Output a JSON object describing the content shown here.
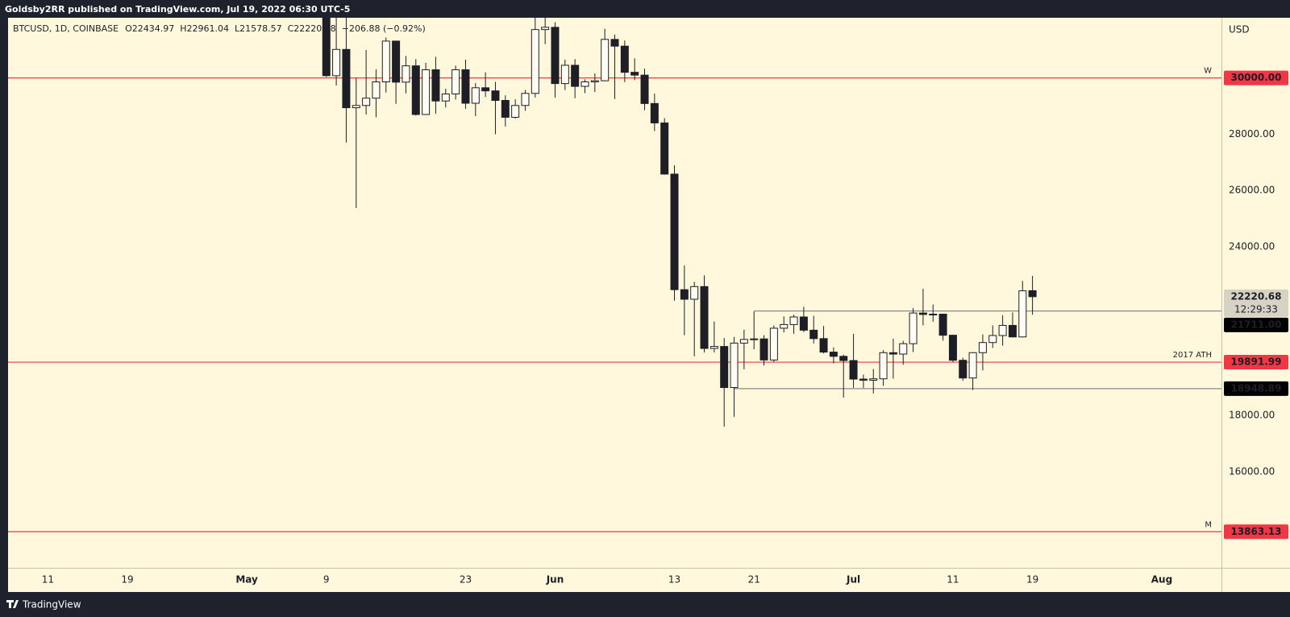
{
  "header": "Goldsby2RR published on TradingView.com, Jul 19, 2022 06:30 UTC-5",
  "footer": "TradingView",
  "chart_data": {
    "type": "candlestick",
    "symbol": "BTCUSD, 1D, COINBASE",
    "ohlc_legend": [
      "O22434.97",
      "H22961.04",
      "L21578.57",
      "C22220.68",
      "−206.88 (−0.92%)"
    ],
    "y_axis_unit": "USD",
    "up_color": "#fffdf3",
    "down_color": "#1e1f26",
    "outline_color": "#1e1f26",
    "x": [
      "05-09",
      "05-10",
      "05-11",
      "05-12",
      "05-13",
      "05-14",
      "05-15",
      "05-16",
      "05-17",
      "05-18",
      "05-19",
      "05-20",
      "05-21",
      "05-22",
      "05-23",
      "05-24",
      "05-25",
      "05-26",
      "05-27",
      "05-28",
      "05-29",
      "05-30",
      "05-31",
      "06-01",
      "06-02",
      "06-03",
      "06-04",
      "06-05",
      "06-06",
      "06-07",
      "06-08",
      "06-09",
      "06-10",
      "06-11",
      "06-12",
      "06-13",
      "06-14",
      "06-15",
      "06-16",
      "06-17",
      "06-18",
      "06-19",
      "06-20",
      "06-21",
      "06-22",
      "06-23",
      "06-24",
      "06-25",
      "06-26",
      "06-27",
      "06-28",
      "06-29",
      "06-30",
      "07-01",
      "07-02",
      "07-03",
      "07-04",
      "07-05",
      "07-06",
      "07-07",
      "07-08",
      "07-09",
      "07-10",
      "07-11",
      "07-12",
      "07-13",
      "07-14",
      "07-15",
      "07-16",
      "07-17",
      "07-18",
      "07-19"
    ],
    "open": [
      34060,
      30080,
      31013,
      28940,
      29020,
      29280,
      29860,
      31310,
      29850,
      30430,
      28700,
      30290,
      29180,
      29430,
      30290,
      29100,
      29650,
      29540,
      29200,
      28600,
      29020,
      29450,
      31720,
      31800,
      29800,
      30450,
      29700,
      29860,
      29900,
      31370,
      31130,
      30200,
      30100,
      29090,
      28400,
      26580,
      22470,
      22130,
      22580,
      20380,
      20450,
      18990,
      20570,
      20700,
      20720,
      19970,
      21100,
      21230,
      21500,
      21030,
      20730,
      20250,
      20100,
      19950,
      19290,
      19250,
      19300,
      20230,
      20180,
      20550,
      21640,
      21590,
      21600,
      20850,
      19960,
      19330,
      20230,
      20590,
      20840,
      21200,
      20790,
      22434.97
    ],
    "high": [
      34244,
      32658,
      32190,
      30000,
      30990,
      30300,
      31440,
      31320,
      30780,
      30670,
      30540,
      30750,
      29620,
      30440,
      30650,
      29820,
      30200,
      29860,
      29380,
      29240,
      29570,
      32200,
      32400,
      31980,
      30650,
      30670,
      29950,
      30160,
      31750,
      31540,
      31330,
      30700,
      30330,
      29440,
      28570,
      26890,
      23330,
      22750,
      22980,
      21340,
      20750,
      20790,
      21050,
      21700,
      20850,
      21200,
      21520,
      21580,
      21860,
      21540,
      21180,
      20420,
      20160,
      20900,
      19450,
      19650,
      20320,
      20730,
      20650,
      21820,
      22500,
      21940,
      21600,
      20860,
      20050,
      20250,
      20880,
      21200,
      21560,
      21660,
      22780,
      22961.04
    ],
    "low": [
      30033,
      29730,
      27700,
      25370,
      28700,
      28600,
      29480,
      29080,
      29450,
      28660,
      28680,
      28730,
      28950,
      29230,
      28900,
      28640,
      29320,
      28000,
      28270,
      28550,
      28830,
      29300,
      31200,
      29300,
      29570,
      29280,
      29460,
      29500,
      29880,
      29250,
      29850,
      29920,
      28850,
      28110,
      26560,
      22080,
      20850,
      20100,
      20240,
      20240,
      17600,
      17950,
      19640,
      20350,
      19770,
      19900,
      20950,
      20900,
      20960,
      20560,
      20200,
      19850,
      18630,
      18980,
      18980,
      18780,
      19050,
      19310,
      19800,
      20250,
      21200,
      21330,
      20660,
      19900,
      19230,
      18900,
      19600,
      20400,
      20480,
      20770,
      20770,
      21578.57
    ],
    "close": [
      30080,
      31013,
      28940,
      29020,
      29280,
      29860,
      31310,
      29850,
      30430,
      28700,
      30290,
      29180,
      29430,
      30290,
      29100,
      29650,
      29540,
      29200,
      28600,
      29020,
      29450,
      31720,
      31800,
      29800,
      30450,
      29700,
      29860,
      29900,
      31370,
      31130,
      30200,
      30100,
      29090,
      28400,
      26580,
      22470,
      22130,
      22580,
      20380,
      20450,
      18990,
      20570,
      20700,
      20720,
      19970,
      21100,
      21230,
      21500,
      21030,
      20730,
      20250,
      20100,
      19950,
      19290,
      19250,
      19300,
      20230,
      20180,
      20550,
      21640,
      21590,
      21600,
      20850,
      19960,
      19330,
      20230,
      20590,
      20840,
      21200,
      20790,
      22430,
      22220.68
    ],
    "xlim": [
      "04-07",
      "08-07"
    ],
    "xticks": [
      {
        "value": "04-11",
        "label": "11"
      },
      {
        "value": "04-19",
        "label": "19"
      },
      {
        "value": "05-01",
        "label": "May"
      },
      {
        "value": "05-09",
        "label": "9"
      },
      {
        "value": "05-23",
        "label": "23"
      },
      {
        "value": "06-01",
        "label": "Jun"
      },
      {
        "value": "06-13",
        "label": "13"
      },
      {
        "value": "06-21",
        "label": "21"
      },
      {
        "value": "07-01",
        "label": "Jul"
      },
      {
        "value": "07-11",
        "label": "11"
      },
      {
        "value": "07-19",
        "label": "19"
      },
      {
        "value": "08-01",
        "label": "Aug"
      }
    ],
    "ylim": [
      12580,
      32140
    ],
    "yticks": [
      {
        "value": 16000,
        "label": "16000.00"
      },
      {
        "value": 18000,
        "label": "18000.00"
      },
      {
        "value": 24000,
        "label": "24000.00"
      },
      {
        "value": 26000,
        "label": "26000.00"
      },
      {
        "value": 28000,
        "label": "28000.00"
      }
    ],
    "level_color": "#f23645",
    "levels": [
      {
        "value": 30000,
        "label": "30000.00",
        "note": "W"
      },
      {
        "value": 19891.99,
        "label": "19891.99",
        "note": "2017 ATH"
      },
      {
        "value": 13863.13,
        "label": "13863.13",
        "note": "M"
      }
    ],
    "range_color": "#6e6f73",
    "range_lines": [
      {
        "value": 21711,
        "label": "21711.00",
        "from": "06-21"
      },
      {
        "value": 18948.89,
        "label": "18948.89",
        "from": "06-19"
      }
    ],
    "last_price": 22220.68,
    "countdown": "12:29:33"
  }
}
